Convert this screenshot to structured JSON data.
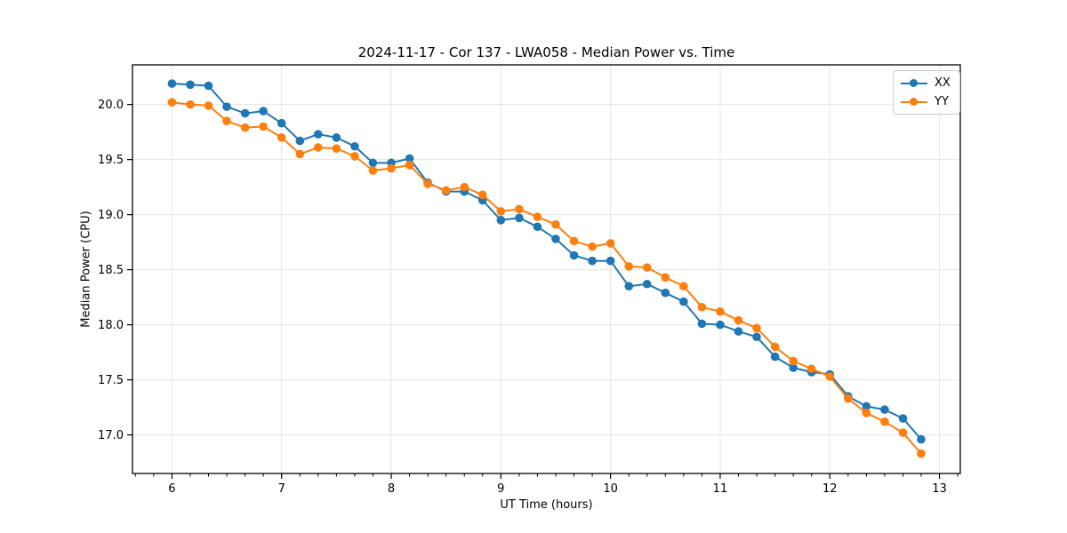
{
  "chart_data": {
    "type": "line",
    "title": "2024-11-17 - Cor 137 - LWA058 - Median Power vs. Time",
    "xlabel": "UT Time (hours)",
    "ylabel": "Median Power (CPU)",
    "x": [
      6.0,
      6.167,
      6.333,
      6.5,
      6.667,
      6.833,
      7.0,
      7.167,
      7.333,
      7.5,
      7.667,
      7.833,
      8.0,
      8.167,
      8.333,
      8.5,
      8.667,
      8.833,
      9.0,
      9.167,
      9.333,
      9.5,
      9.667,
      9.833,
      10.0,
      10.167,
      10.333,
      10.5,
      10.667,
      10.833,
      11.0,
      11.167,
      11.333,
      11.5,
      11.667,
      11.833,
      12.0,
      12.167,
      12.333,
      12.5,
      12.667,
      12.833
    ],
    "series": [
      {
        "name": "XX",
        "color": "#1f77b4",
        "values": [
          20.19,
          20.18,
          20.17,
          19.98,
          19.92,
          19.94,
          19.83,
          19.67,
          19.73,
          19.7,
          19.62,
          19.47,
          19.47,
          19.51,
          19.29,
          19.21,
          19.21,
          19.13,
          18.95,
          18.97,
          18.89,
          18.78,
          18.63,
          18.58,
          18.58,
          18.35,
          18.37,
          18.29,
          18.21,
          18.01,
          18.0,
          17.94,
          17.89,
          17.71,
          17.61,
          17.57,
          17.55,
          17.35,
          17.26,
          17.23,
          17.15,
          16.96
        ]
      },
      {
        "name": "YY",
        "color": "#ff7f0e",
        "values": [
          20.02,
          20.0,
          19.99,
          19.85,
          19.79,
          19.8,
          19.7,
          19.55,
          19.61,
          19.6,
          19.53,
          19.4,
          19.42,
          19.45,
          19.28,
          19.22,
          19.25,
          19.18,
          19.03,
          19.05,
          18.98,
          18.91,
          18.76,
          18.71,
          18.74,
          18.53,
          18.52,
          18.43,
          18.35,
          18.16,
          18.12,
          18.04,
          17.97,
          17.8,
          17.67,
          17.6,
          17.53,
          17.33,
          17.2,
          17.12,
          17.02,
          16.83
        ]
      }
    ],
    "xlim": [
      5.64,
      13.19
    ],
    "ylim": [
      16.65,
      20.36
    ],
    "xticks": [
      6,
      7,
      8,
      9,
      10,
      11,
      12,
      13
    ],
    "xtick_labels": [
      "6",
      "7",
      "8",
      "9",
      "10",
      "11",
      "12",
      "13"
    ],
    "yticks": [
      17.0,
      17.5,
      18.0,
      18.5,
      19.0,
      19.5,
      20.0
    ],
    "ytick_labels": [
      "17.0",
      "17.5",
      "18.0",
      "18.5",
      "19.0",
      "19.5",
      "20.0"
    ],
    "minor_xtick_step": 0.1666667,
    "grid": true,
    "grid_color": "#e5e5e5",
    "spine_color": "#000000",
    "legend": {
      "position": "upper right",
      "entries": [
        "XX",
        "YY"
      ]
    },
    "marker": "circle"
  }
}
